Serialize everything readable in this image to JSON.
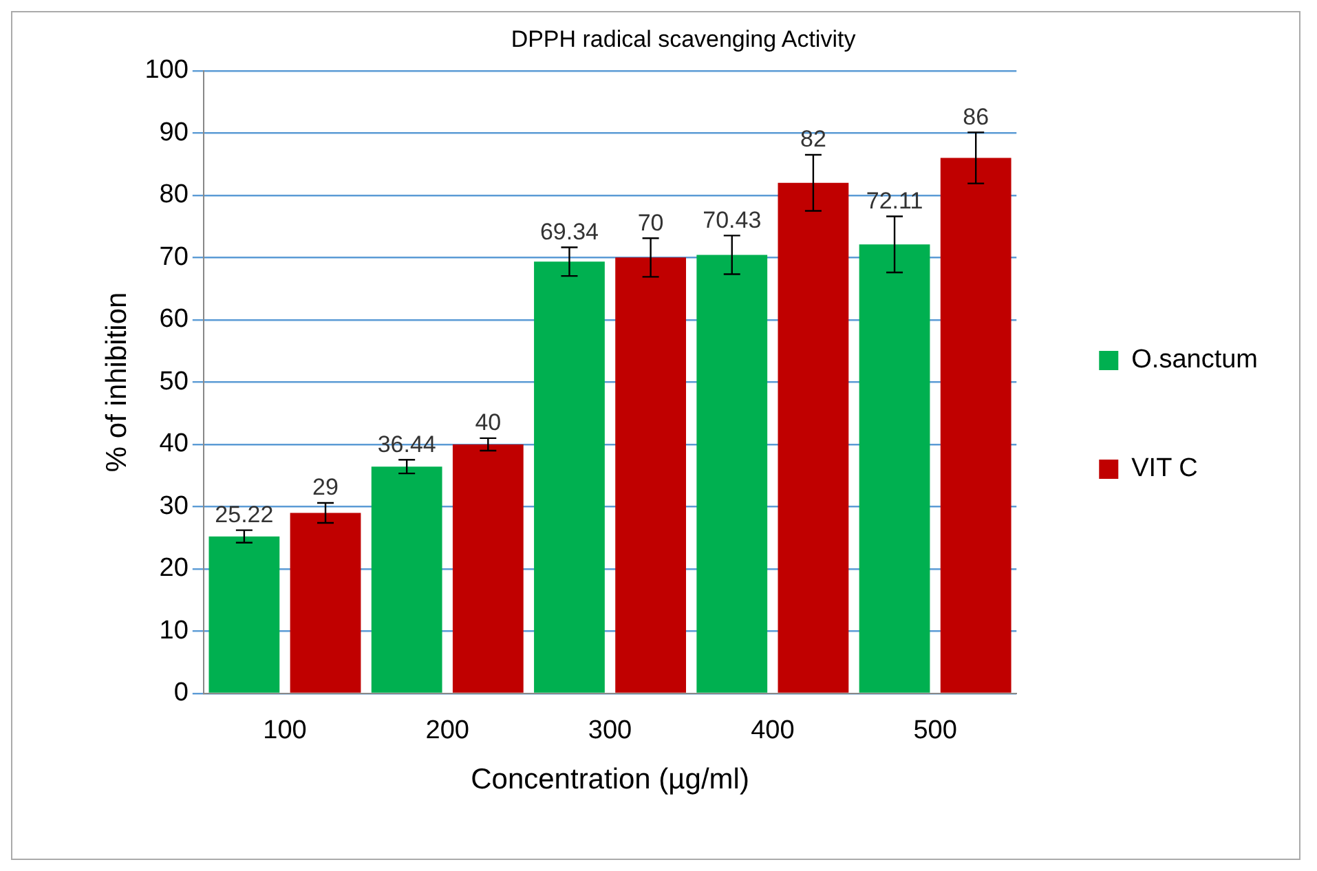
{
  "chart_data": {
    "type": "bar",
    "title": "DPPH radical scavenging Activity",
    "xlabel": "Concentration (µg/ml)",
    "ylabel": "% of inhibition",
    "categories": [
      "100",
      "200",
      "300",
      "400",
      "500"
    ],
    "series": [
      {
        "name": "O.sanctum",
        "color": "#00b050",
        "values": [
          25.22,
          36.44,
          69.34,
          70.43,
          72.11
        ],
        "errors": [
          1.0,
          1.1,
          2.3,
          3.1,
          4.5
        ]
      },
      {
        "name": "VIT C",
        "color": "#c00000",
        "values": [
          29,
          40,
          70,
          82,
          86
        ],
        "errors": [
          1.6,
          1.0,
          3.1,
          4.5,
          4.1
        ]
      }
    ],
    "ylim": [
      0,
      100
    ],
    "yticks": [
      0,
      10,
      20,
      30,
      40,
      50,
      60,
      70,
      80,
      90,
      100
    ],
    "grid": "y",
    "legend": "right",
    "data_labels": true
  }
}
